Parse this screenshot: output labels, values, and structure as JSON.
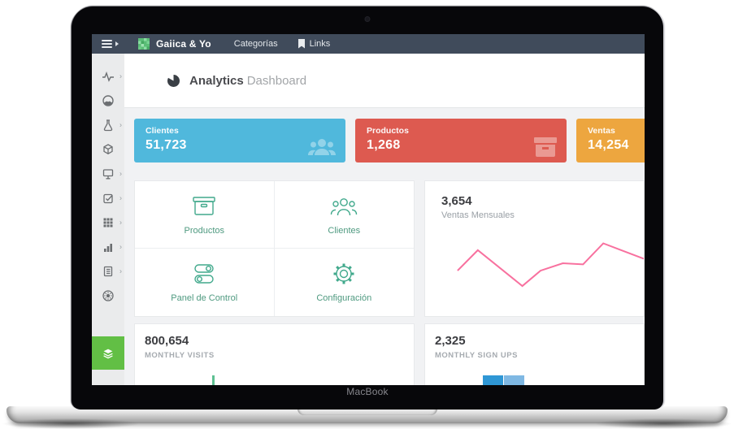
{
  "device": {
    "label": "MacBook"
  },
  "colors": {
    "navbar_bg": "#404b5b",
    "accent_green": "#62bf45",
    "tile_icon_green": "#41a98c",
    "card_blue": "#50b8dc",
    "card_red": "#dd5a50",
    "card_orange": "#eda63f",
    "chart_pink": "#f8719f"
  },
  "navbar": {
    "menu_icon": "hamburger-icon",
    "brand": {
      "logo_icon": "mosaic-logo-icon",
      "name": "Gaiica & Yo"
    },
    "items": [
      {
        "label": "Categorías"
      },
      {
        "label": "Links",
        "icon": "bookmark-icon"
      }
    ]
  },
  "sidebar": {
    "items": [
      {
        "icon": "activity-icon",
        "chevron": true
      },
      {
        "icon": "gauge-icon",
        "chevron": false
      },
      {
        "icon": "flask-icon",
        "chevron": true
      },
      {
        "icon": "cube-icon",
        "chevron": false
      },
      {
        "icon": "monitor-icon",
        "chevron": true
      },
      {
        "icon": "check-square-icon",
        "chevron": true
      },
      {
        "icon": "grid-icon",
        "chevron": true
      },
      {
        "icon": "bar-chart-icon",
        "chevron": true
      },
      {
        "icon": "notebook-icon",
        "chevron": true
      },
      {
        "icon": "disc-icon",
        "chevron": false
      },
      {
        "icon": "layers-icon",
        "chevron": false,
        "active": true
      }
    ]
  },
  "header": {
    "icon": "pie-chart-icon",
    "title_bold": "Analytics",
    "title_light": "Dashboard"
  },
  "stat_cards": [
    {
      "label": "Clientes",
      "value": "51,723",
      "icon": "users-icon",
      "color": "#50b8dc"
    },
    {
      "label": "Productos",
      "value": "1,268",
      "icon": "archive-icon",
      "color": "#dd5a50"
    },
    {
      "label": "Ventas",
      "value": "14,254",
      "icon": "",
      "color": "#eda63f"
    }
  ],
  "tiles": [
    {
      "label": "Productos",
      "icon": "box-icon"
    },
    {
      "label": "Clientes",
      "icon": "users-outline-icon"
    },
    {
      "label": "Panel de Control",
      "icon": "toggles-icon"
    },
    {
      "label": "Configuración",
      "icon": "gear-icon"
    }
  ],
  "sales_panel": {
    "value": "3,654",
    "label": "Ventas Mensuales"
  },
  "bottom_stats": [
    {
      "value": "800,654",
      "label": "MONTHLY VISITS"
    },
    {
      "value": "2,325",
      "label": "MONTHLY SIGN UPS"
    }
  ],
  "chart_data": [
    {
      "type": "line",
      "title": "Ventas Mensuales",
      "headline_value": "3,654",
      "x_percent": [
        8,
        18,
        40,
        49,
        60,
        70,
        80,
        100
      ],
      "values": [
        37,
        73,
        10,
        37,
        50,
        48,
        85,
        58
      ],
      "ylim": [
        0,
        100
      ],
      "color": "#f8719f",
      "axes": "hidden",
      "grid": false,
      "legend": "none"
    },
    {
      "type": "line",
      "title": "MONTHLY VISITS sparkline",
      "color": "#5ec092",
      "note": "only a tiny tip visible; chart cut off by device bezel"
    },
    {
      "type": "bar",
      "title": "MONTHLY SIGN UPS sparkline",
      "bar_colors": [
        "#2f97d5",
        "#7fb8e3"
      ],
      "note": "two bar tops visible; chart cut off by device bezel"
    }
  ]
}
